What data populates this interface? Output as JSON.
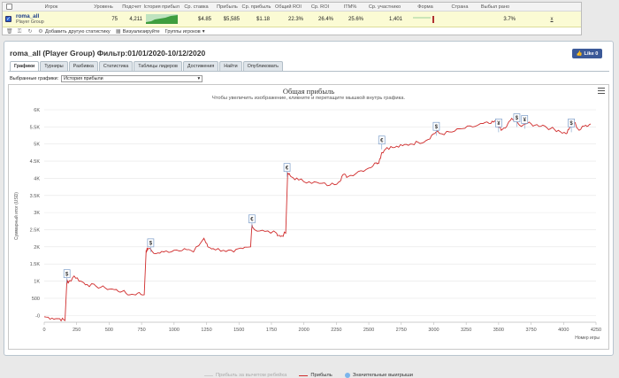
{
  "stats": {
    "headers": [
      "",
      "Игрок",
      "Уровень",
      "Подсчет",
      "История прибыли",
      "Ср. ставка",
      "Прибыль",
      "Ср. прибыль",
      "Общий ROI",
      "Ср. ROI",
      "ITM%",
      "Ср. участнико",
      "Форма",
      "Страна",
      "Выбыл рано",
      ""
    ],
    "row": {
      "player": "roma_all",
      "group": "Player Group",
      "level": "75",
      "count": "4,211",
      "avg_stake": "$4.85",
      "profit": "$5,585",
      "avg_profit": "$1.18",
      "total_roi": "22.3%",
      "avg_roi": "26.4%",
      "itm": "25.6%",
      "avg_entrants": "1,401",
      "early_out": "3.7%",
      "x": "x"
    },
    "toolbar": {
      "add_stats": "Добавить другую статистику",
      "visualize": "Визуализируйте",
      "player_groups": "Группы игроков"
    }
  },
  "panel": {
    "title": "roma_all (Player Group) Фильтр:01/01/2020-10/12/2020",
    "like": "Like 0",
    "tabs": [
      "Графики",
      "Турниры",
      "Разбивка",
      "Статистика",
      "Таблицы лидеров",
      "Достижения",
      "Найти",
      "Опубликовать"
    ],
    "active_tab": 0,
    "chart_label": "Выбранные графики:",
    "chart_select": "История прибыли"
  },
  "chart_data": {
    "type": "line",
    "title": "Общая прибыль",
    "subtitle": "Чтобы увеличить изображение, кликните и перетащите мышкой внутрь графика.",
    "xlabel": "Номер игры",
    "ylabel": "Суммарный итог (USD)",
    "xlim": [
      0,
      4250
    ],
    "ylim": [
      -200,
      6000
    ],
    "xticks": [
      "0",
      "250",
      "500",
      "750",
      "1000",
      "1250",
      "1500",
      "1750",
      "2000",
      "2250",
      "2500",
      "2750",
      "3000",
      "3250",
      "3500",
      "3750",
      "4000",
      "4250"
    ],
    "yticks": [
      "-0",
      "500",
      "1K",
      "1.5K",
      "2K",
      "2.5K",
      "3K",
      "3.5K",
      "4K",
      "4.5K",
      "5K",
      "5.5K",
      "6K"
    ],
    "series": [
      {
        "name": "Прибыль",
        "color": "#d02c2c",
        "x": [
          0,
          60,
          120,
          160,
          175,
          185,
          230,
          280,
          330,
          400,
          470,
          540,
          600,
          660,
          720,
          770,
          785,
          800,
          860,
          920,
          1000,
          1080,
          1150,
          1230,
          1260,
          1300,
          1380,
          1460,
          1530,
          1590,
          1600,
          1620,
          1700,
          1790,
          1820,
          1860,
          1875,
          1900,
          1960,
          2040,
          2120,
          2200,
          2270,
          2300,
          2340,
          2420,
          2500,
          2560,
          2580,
          2600,
          2640,
          2700,
          2760,
          2820,
          2880,
          2940,
          3000,
          3020,
          3060,
          3140,
          3220,
          3300,
          3380,
          3440,
          3480,
          3520,
          3560,
          3600,
          3660,
          3720,
          3780,
          3840,
          3900,
          3960,
          4020,
          4050,
          4080,
          4120,
          4170,
          4210
        ],
        "values": [
          -40,
          -80,
          -100,
          -150,
          1050,
          950,
          1150,
          1000,
          900,
          850,
          800,
          750,
          700,
          600,
          650,
          600,
          1900,
          1950,
          1800,
          1850,
          1900,
          1950,
          1850,
          2250,
          2000,
          1950,
          1900,
          1850,
          1950,
          2000,
          2650,
          2500,
          2450,
          2400,
          2300,
          2400,
          4150,
          4050,
          3950,
          3900,
          3850,
          3800,
          3900,
          4100,
          4050,
          4200,
          4300,
          4450,
          4500,
          4750,
          4900,
          4900,
          4950,
          5000,
          5050,
          5100,
          5300,
          5350,
          5300,
          5350,
          5450,
          5500,
          5600,
          5600,
          5650,
          5400,
          5500,
          5750,
          5550,
          5600,
          5550,
          5550,
          5450,
          5400,
          5300,
          5500,
          5650,
          5400,
          5550,
          5585
        ]
      }
    ],
    "markers": [
      {
        "x": 175,
        "y": 1100,
        "symbol": "$"
      },
      {
        "x": 820,
        "y": 2000,
        "symbol": "$"
      },
      {
        "x": 1600,
        "y": 2700,
        "symbol": "€"
      },
      {
        "x": 1870,
        "y": 4200,
        "symbol": "€"
      },
      {
        "x": 2600,
        "y": 5000,
        "symbol": "€"
      },
      {
        "x": 3020,
        "y": 5400,
        "symbol": "$"
      },
      {
        "x": 3500,
        "y": 5500,
        "symbol": "¥"
      },
      {
        "x": 3640,
        "y": 5650,
        "symbol": "$"
      },
      {
        "x": 3700,
        "y": 5600,
        "symbol": "¥"
      },
      {
        "x": 4060,
        "y": 5500,
        "symbol": "$"
      }
    ],
    "legend": [
      "Прибыль за вычетом ребейка",
      "Прибыль",
      "Значительные выигрыши"
    ],
    "legend_colors": [
      "#cccccc",
      "#d02c2c",
      "#7cb5ec"
    ],
    "grid": true,
    "legend_position": "bottom"
  }
}
